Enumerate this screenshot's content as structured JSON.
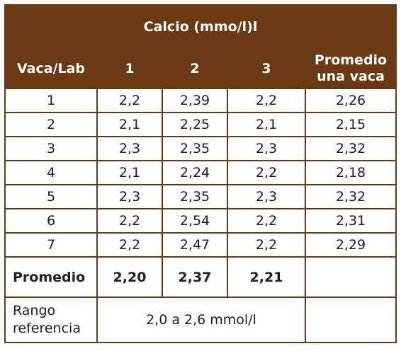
{
  "table": {
    "title": "Calcio (mmo/l)l",
    "headers": [
      "Vaca/Lab",
      "1",
      "2",
      "3",
      "Promedio una vaca"
    ],
    "rows": [
      [
        "1",
        "2,2",
        "2,39",
        "2,2",
        "2,26"
      ],
      [
        "2",
        "2,1",
        "2,25",
        "2,1",
        "2,15"
      ],
      [
        "3",
        "2,3",
        "2,35",
        "2,3",
        "2,32"
      ],
      [
        "4",
        "2,1",
        "2,24",
        "2,2",
        "2,18"
      ],
      [
        "5",
        "2,3",
        "2,35",
        "2,3",
        "2,32"
      ],
      [
        "6",
        "2,2",
        "2,54",
        "2,2",
        "2,31"
      ],
      [
        "7",
        "2,2",
        "2,47",
        "2,2",
        "2,29"
      ]
    ],
    "average_row": {
      "label": "Promedio",
      "values": [
        "2,20",
        "2,37",
        "2,21",
        ""
      ]
    },
    "reference_row": {
      "label_line1": "Rango",
      "label_line2": "referencia",
      "value": "2,0 a 2,6 mmol/l",
      "extra": ""
    }
  },
  "colors": {
    "header_bg": "#6b3a14",
    "header_text": "#ffffff",
    "border": "#6b3a14"
  }
}
